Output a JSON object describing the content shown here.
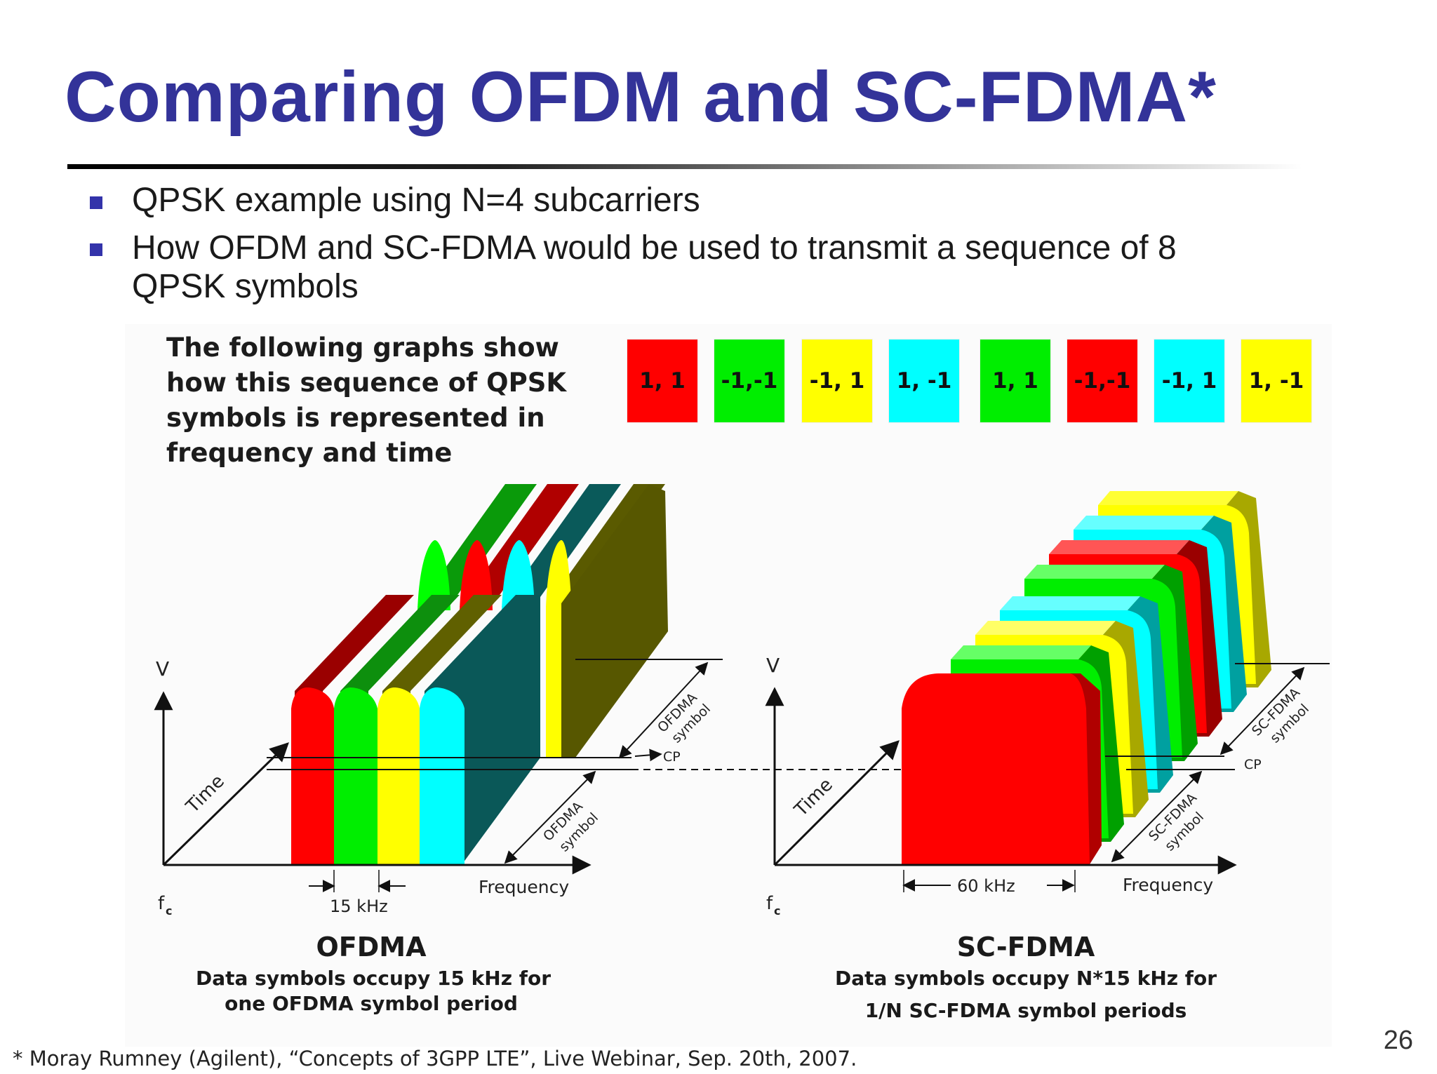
{
  "slide": {
    "title": "Comparing OFDM and SC-FDMA*",
    "bullets": [
      "QPSK example using N=4 subcarriers",
      "How OFDM and SC-FDMA would be used to transmit a sequence of 8",
      "QPSK symbols"
    ],
    "footnote": "* Moray Rumney (Agilent), “Concepts of 3GPP LTE”, Live Webinar, Sep. 20th, 2007.",
    "page_number": "26"
  },
  "figure": {
    "intro_lines": [
      "The following graphs show",
      "how this sequence of QPSK",
      "symbols is represented in",
      "frequency and time"
    ],
    "symbols": [
      {
        "label": "1, 1",
        "color": "#ff0000"
      },
      {
        "label": "-1,-1",
        "color": "#00ee00"
      },
      {
        "label": "-1, 1",
        "color": "#ffff00"
      },
      {
        "label": "1, -1",
        "color": "#00ffff"
      },
      {
        "label": "1, 1",
        "color": "#00ee00"
      },
      {
        "label": "-1,-1",
        "color": "#ff0000"
      },
      {
        "label": "-1, 1",
        "color": "#00ffff"
      },
      {
        "label": "1, -1",
        "color": "#ffff00"
      }
    ],
    "ofdma": {
      "v_label": "V",
      "time_label": "Time",
      "fc_label": "f",
      "fc_sub": "c",
      "frequency_label": "Frequency",
      "spacing_label": "15 kHz",
      "symbol_label_1": "OFDMA",
      "symbol_label_2": "symbol",
      "cp_label": "CP",
      "caption_title": "OFDMA",
      "caption_line1": "Data symbols occupy 15 kHz for",
      "caption_line2": "one OFDMA symbol period"
    },
    "scfdma": {
      "v_label": "V",
      "time_label": "Time",
      "fc_label": "f",
      "fc_sub": "c",
      "frequency_label": "Frequency",
      "spacing_label": "60 kHz",
      "symbol_label_1": "SC-FDMA",
      "symbol_label_2": "symbol",
      "cp_label": "CP",
      "caption_title": "SC-FDMA",
      "caption_line1": "Data symbols occupy N*15 kHz for",
      "caption_line2": "1/N SC-FDMA symbol periods"
    }
  }
}
